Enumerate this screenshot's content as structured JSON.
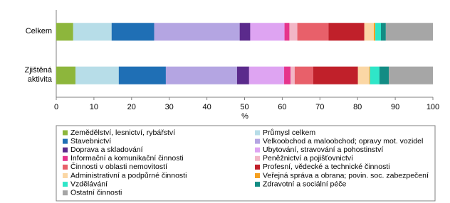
{
  "chart_data": {
    "type": "stacked_bar_horizontal",
    "x_label": "%",
    "categories": [
      "Celkem",
      "Zjištěná aktivita"
    ],
    "xlim": [
      0,
      100
    ],
    "xticks": [
      0,
      10,
      20,
      30,
      40,
      50,
      60,
      70,
      80,
      90,
      100
    ],
    "legend": "bottom",
    "series": [
      {
        "name": "Zemědělství, lesnictví, rybářství",
        "color": "#8db63c",
        "values": [
          4.5,
          5.1
        ]
      },
      {
        "name": "Průmysl celkem",
        "color": "#b7dde8",
        "values": [
          10.2,
          11.5
        ]
      },
      {
        "name": "Stavebnictví",
        "color": "#1f6fb5",
        "values": [
          11.3,
          12.5
        ]
      },
      {
        "name": "Velkoobchod a maloobchod; opravy mot. vozidel",
        "color": "#b4a5e2",
        "values": [
          22.7,
          18.9
        ]
      },
      {
        "name": "Doprava a skladování",
        "color": "#5b2a8c",
        "values": [
          2.8,
          3.2
        ]
      },
      {
        "name": "Ubytování, stravování a pohostinství",
        "color": "#dea4f2",
        "values": [
          9.1,
          9.3
        ]
      },
      {
        "name": "Informační a komunikační činnosti",
        "color": "#e6348c",
        "values": [
          1.3,
          1.7
        ]
      },
      {
        "name": "Peněžnictví a pojišťovnictví",
        "color": "#f2b6c6",
        "values": [
          2.1,
          1.1
        ]
      },
      {
        "name": "Činnosti v oblasti nemovitostí",
        "color": "#e8606a",
        "values": [
          8.3,
          4.9
        ]
      },
      {
        "name": "Profesní, vědecké a technické činnosti",
        "color": "#c0202a",
        "values": [
          9.5,
          11.9
        ]
      },
      {
        "name": "Administrativní a podpůrné činnosti",
        "color": "#fbd7a5",
        "values": [
          2.5,
          3.0
        ]
      },
      {
        "name": "Veřejná správa a obrana; povin. soc. zabezpečení",
        "color": "#f5a020",
        "values": [
          0.4,
          0.2
        ]
      },
      {
        "name": "Vzdělávání",
        "color": "#2fe6c8",
        "values": [
          1.5,
          2.5
        ]
      },
      {
        "name": "Zdravotní a sociální péče",
        "color": "#138c84",
        "values": [
          1.3,
          2.5
        ]
      },
      {
        "name": "Ostatní činnosti",
        "color": "#a6a6a6",
        "values": [
          12.5,
          11.7
        ]
      }
    ]
  }
}
